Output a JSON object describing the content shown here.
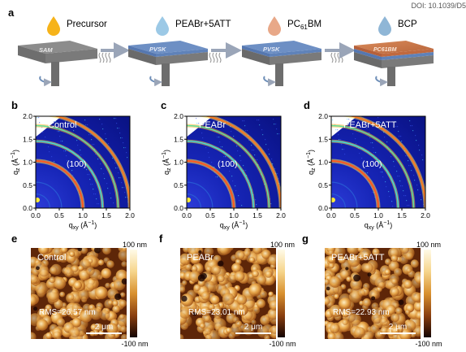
{
  "doi": "DOI: 10.1039/D5",
  "panel_labels": {
    "a": "a",
    "b": "b",
    "c": "c",
    "d": "d",
    "e": "e",
    "f": "f",
    "g": "g"
  },
  "process": {
    "steps": [
      {
        "label": "Precursor",
        "substrate_text": "SAM",
        "drop_color": "#f6b31a"
      },
      {
        "label": "PEABr+5ATT",
        "substrate_text": "PVSK",
        "drop_color": "#9cc9e6"
      },
      {
        "label": "PC",
        "label_sub": "61",
        "label_tail": "BM",
        "substrate_text": "PVSK",
        "drop_color": "#e8a888"
      },
      {
        "label": "BCP",
        "substrate_text": "PC61BM",
        "drop_color": "#8fb6d6"
      }
    ]
  },
  "giwaxs": {
    "panels": [
      {
        "title": "Control",
        "peak_label": "(100)"
      },
      {
        "title": "PEABr",
        "peak_label": "(100)"
      },
      {
        "title": "PEABr+5ATT",
        "peak_label": "(100)"
      }
    ],
    "x_ticks": [
      "0.0",
      "0.5",
      "1.0",
      "1.5",
      "2.0"
    ],
    "y_ticks": [
      "0.0",
      "0.5",
      "1.0",
      "1.5",
      "2.0"
    ],
    "x_label": "q",
    "x_label_sub": "xy",
    "x_label_unit": " (Å",
    "x_label_exp": "−1",
    "x_label_close": ")",
    "y_label": "q",
    "y_label_sub": "z",
    "y_label_unit": " (Å",
    "y_label_exp": "−1",
    "y_label_close": ")"
  },
  "afm": {
    "panels": [
      {
        "title": "Control",
        "rms": "RMS=26.57 nm",
        "scale": "2 μm"
      },
      {
        "title": "PEABr",
        "rms": "RMS=23.01 nm",
        "scale": "2 μm"
      },
      {
        "title": "PEABr+5ATT",
        "rms": "RMS=22.93 nm",
        "scale": "2 μm"
      }
    ],
    "colorbar_max": "100 nm",
    "colorbar_min": "-100 nm"
  },
  "colors": {
    "arrow": "#9aa5b8",
    "rotate": "#6f8fb8"
  }
}
